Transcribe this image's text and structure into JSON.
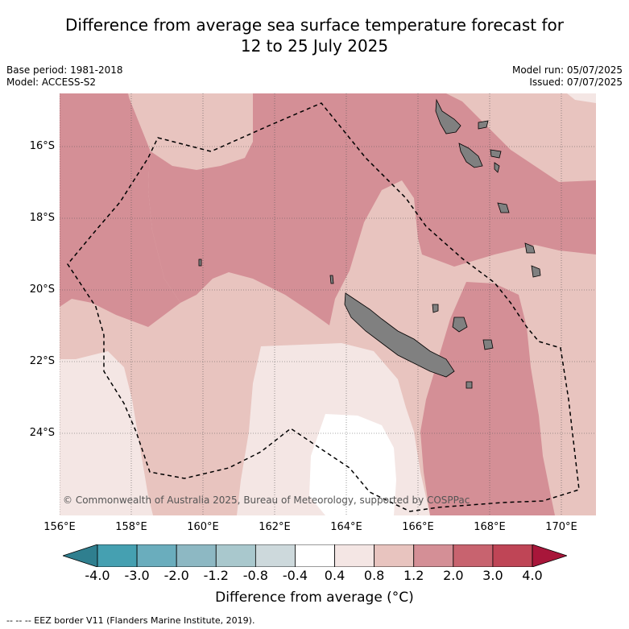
{
  "title_line1": "Difference from average sea surface temperature forecast for",
  "title_line2": "12 to 25 July 2025",
  "base_period": "Base period: 1981-2018",
  "model": "Model: ACCESS-S2",
  "model_run": "Model run: 05/07/2025",
  "issued": "Issued: 07/07/2025",
  "lat_labels": [
    "16°S",
    "18°S",
    "20°S",
    "22°S",
    "24°S"
  ],
  "lon_labels": [
    "156°E",
    "158°E",
    "160°E",
    "162°E",
    "164°E",
    "166°E",
    "168°E",
    "170°E"
  ],
  "copyright": "© Commonwealth of Australia 2025, Bureau of Meteorology, supported by COSPPac",
  "colorbar": {
    "ticks": [
      "-4.0",
      "-3.0",
      "-2.0",
      "-1.2",
      "-0.8",
      "-0.4",
      "0.4",
      "0.8",
      "1.2",
      "2.0",
      "3.0",
      "4.0"
    ],
    "colors": [
      "#2f7f8f",
      "#45a0b1",
      "#6aadbd",
      "#8db8c3",
      "#a9c8cd",
      "#cdd9dc",
      "#ffffff",
      "#f4e6e4",
      "#e8c4bf",
      "#d48f96",
      "#c8636f",
      "#bf4556",
      "#a8163a"
    ],
    "label": "Difference from average (°C)"
  },
  "footer_legend": "-- -- -- EEZ border V11 (Flanders Marine Institute, 2019)."
}
